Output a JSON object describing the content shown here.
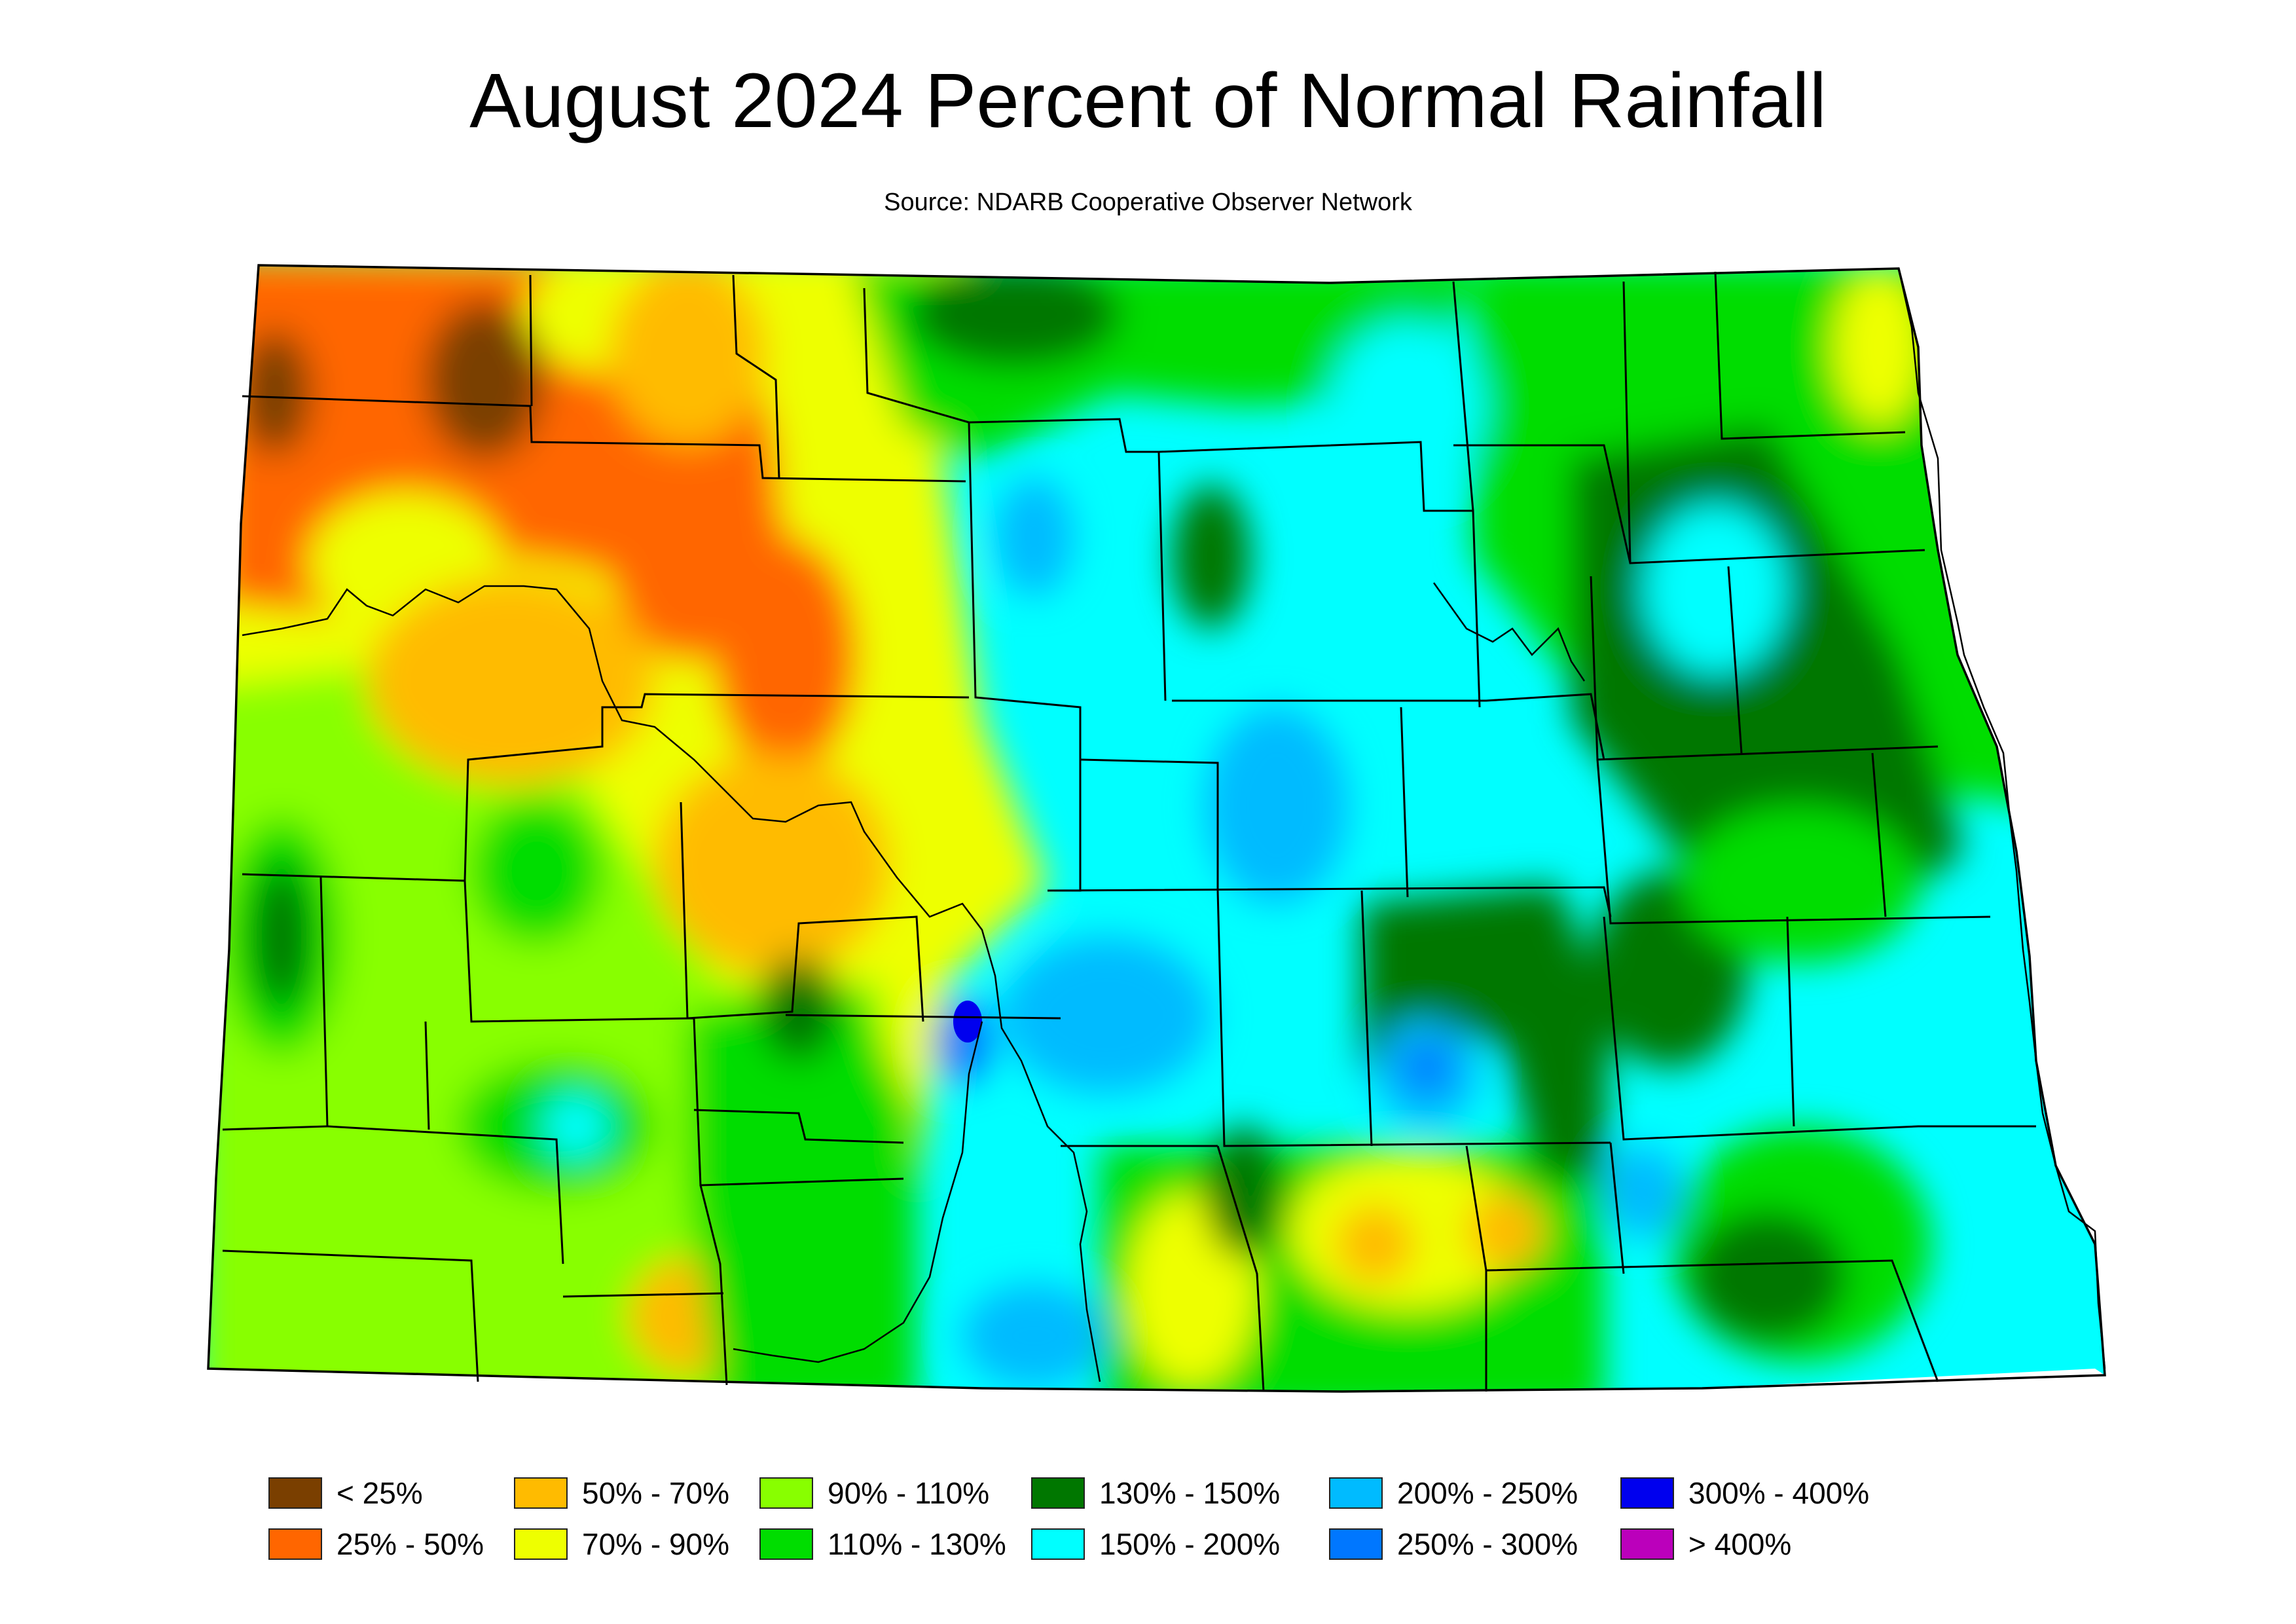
{
  "title": "August 2024 Percent of Normal Rainfall",
  "subtitle": "Source: NDARB Cooperative Observer Network",
  "colors": {
    "lt25": "#7a3f00",
    "c25_50": "#ff6600",
    "c50_70": "#ffbb00",
    "c70_90": "#eeff00",
    "c90_110": "#88ff00",
    "c110_130": "#00dd00",
    "c130_150": "#007700",
    "c150_200": "#00ffff",
    "c200_250": "#00bbff",
    "c250_300": "#0077ff",
    "c300_400": "#0000ee",
    "gt400": "#bb00bb"
  },
  "legend": [
    {
      "label": "< 25%",
      "color": "#7a3f00"
    },
    {
      "label": "25% - 50%",
      "color": "#ff6600"
    },
    {
      "label": "50% - 70%",
      "color": "#ffbb00"
    },
    {
      "label": "70% - 90%",
      "color": "#eeff00"
    },
    {
      "label": "90% - 110%",
      "color": "#88ff00"
    },
    {
      "label": "110% - 130%",
      "color": "#00dd00"
    },
    {
      "label": "130% - 150%",
      "color": "#007700"
    },
    {
      "label": "150% - 200%",
      "color": "#00ffff"
    },
    {
      "label": "200% - 250%",
      "color": "#00bbff"
    },
    {
      "label": "250% - 300%",
      "color": "#0077ff"
    },
    {
      "label": "300% - 400%",
      "color": "#0000ee"
    },
    {
      "label": "> 400%",
      "color": "#bb00bb"
    }
  ]
}
